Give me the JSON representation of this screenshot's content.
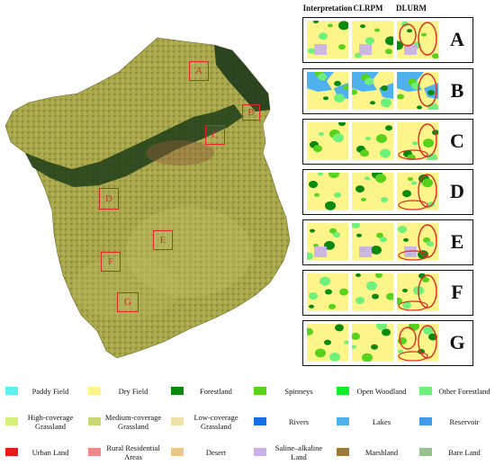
{
  "figure": {
    "comparison": {
      "headers": [
        "Interpretation",
        "CLRPM",
        "DLURM"
      ],
      "rows": [
        "A",
        "B",
        "C",
        "D",
        "E",
        "F",
        "G"
      ]
    },
    "map": {
      "regions": [
        "A",
        "B",
        "C",
        "D",
        "E",
        "F",
        "G"
      ]
    },
    "legend": [
      {
        "label": "Paddy Field",
        "color": "#5ef0f0"
      },
      {
        "label": "Dry Field",
        "color": "#fdf58a"
      },
      {
        "label": "Forestland",
        "color": "#0b8a12"
      },
      {
        "label": "Spinneys",
        "color": "#58d21a"
      },
      {
        "label": "Open Woodland",
        "color": "#10f02a"
      },
      {
        "label": "Other Forestland",
        "color": "#6ef07a"
      },
      {
        "label": "High-coverage Grassland",
        "color": "#d6f07a"
      },
      {
        "label": "Medium-coverage Grassland",
        "color": "#c9d873"
      },
      {
        "label": "Low-coverage Grassland",
        "color": "#eee1a5"
      },
      {
        "label": "Rivers",
        "color": "#1570e6"
      },
      {
        "label": "Lakes",
        "color": "#4fb2ee"
      },
      {
        "label": "Reservoir",
        "color": "#3f9bea"
      },
      {
        "label": "Urban Land",
        "color": "#e81b1b"
      },
      {
        "label": "Rural Residential Areas",
        "color": "#f08a8a"
      },
      {
        "label": "Desert",
        "color": "#eac88c"
      },
      {
        "label": "Saline–alkaline Land",
        "color": "#c9b0e8"
      },
      {
        "label": "Marshland",
        "color": "#9b7a3a"
      },
      {
        "label": "Bare Land",
        "color": "#97c28f"
      }
    ]
  }
}
